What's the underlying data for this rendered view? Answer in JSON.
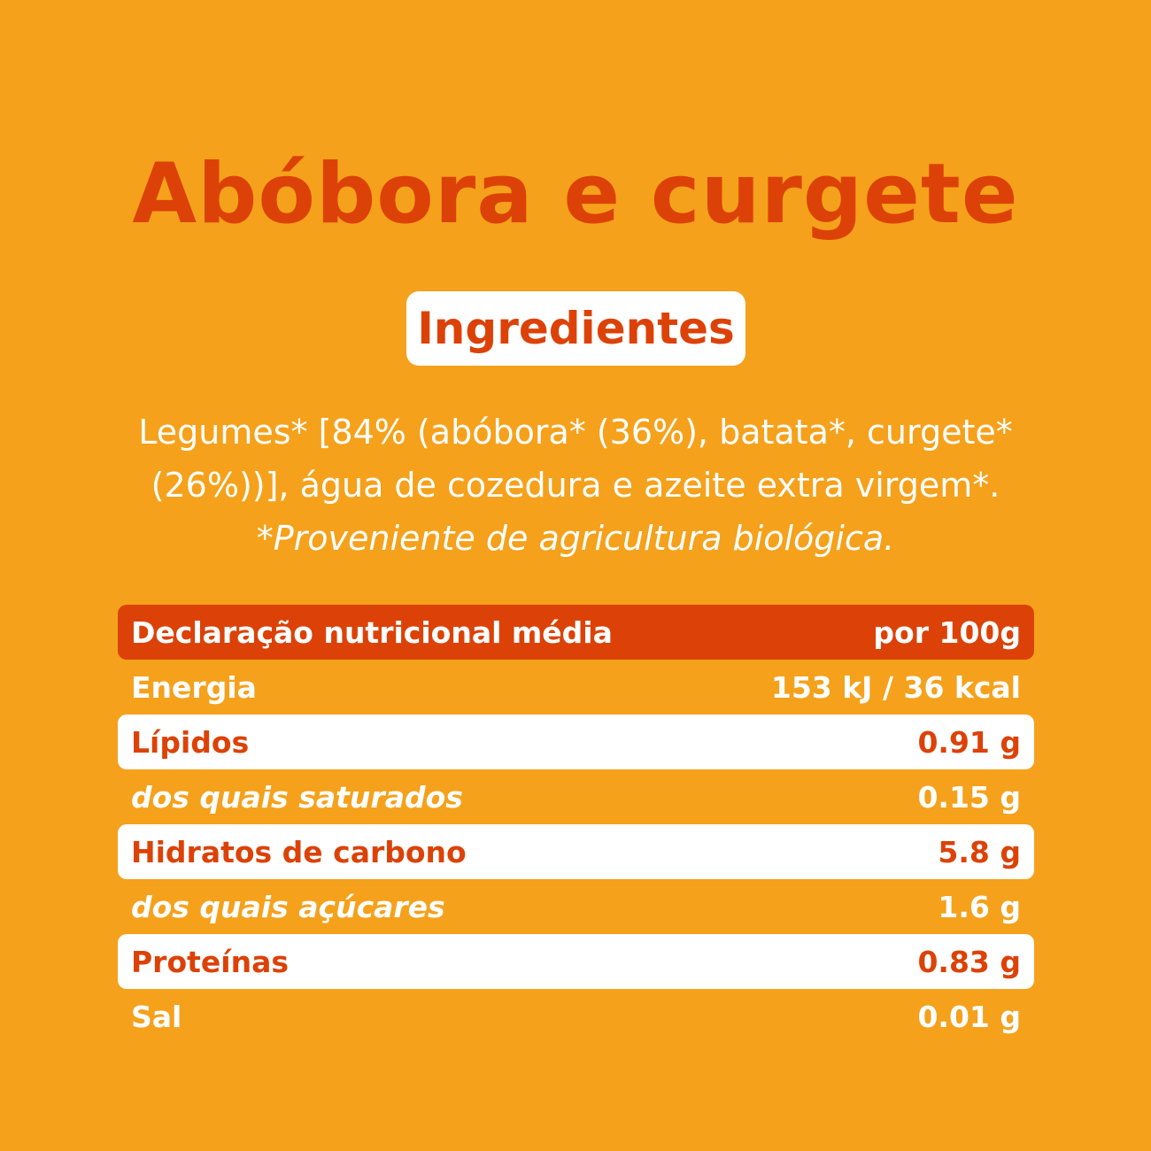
{
  "title": "Abóbora e curgete",
  "ingredients_badge": "Ingredientes",
  "ingredients": {
    "line1": "Legumes* [84% (abóbora* (36%), batata*, curgete*",
    "line2": "(26%))], água de cozedura e azeite extra virgem*.",
    "note": "*Proveniente de agricultura biológica."
  },
  "nutrition": {
    "header": {
      "label": "Declaração nutricional média",
      "value": "por 100g"
    },
    "rows": [
      {
        "label": "Energia",
        "value": "153 kJ / 36 kcal"
      },
      {
        "label": "Lípidos",
        "value": "0.91 g"
      },
      {
        "label": "dos quais saturados",
        "value": "0.15 g"
      },
      {
        "label": "Hidratos de carbono",
        "value": "5.8 g"
      },
      {
        "label": "dos quais açúcares",
        "value": "1.6 g"
      },
      {
        "label": "Proteínas",
        "value": "0.83 g"
      },
      {
        "label": "Sal",
        "value": "0.01 g"
      }
    ]
  },
  "colors": {
    "background": "#f5a11b",
    "accent": "#dc4207",
    "white": "#ffffff"
  }
}
